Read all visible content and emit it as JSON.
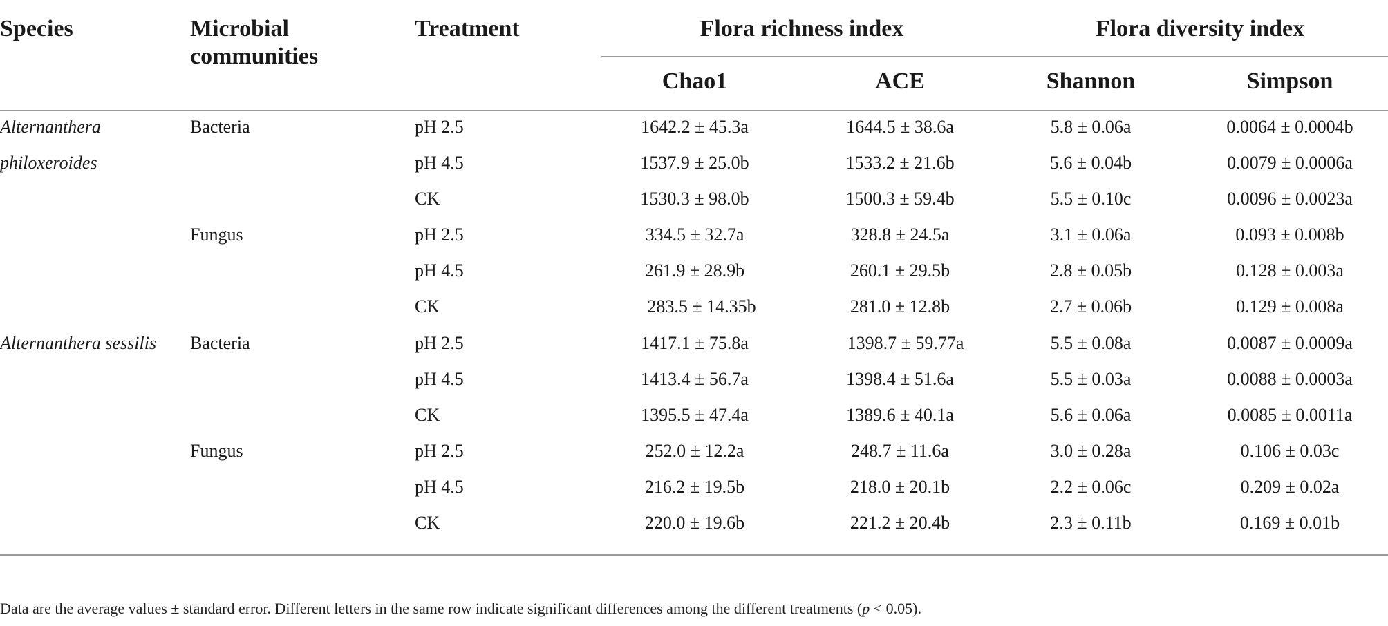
{
  "headers": {
    "species": "Species",
    "microbial_line1": "Microbial",
    "microbial_line2": "communities",
    "treatment": "Treatment",
    "richness_group": "Flora richness index",
    "diversity_group": "Flora diversity index",
    "chao1": "Chao1",
    "ace": "ACE",
    "shannon": "Shannon",
    "simpson": "Simpson"
  },
  "species_labels": {
    "s1_line1": "Alternanthera",
    "s1_line2": "philoxeroides",
    "s2": "Alternanthera sessilis"
  },
  "community_labels": {
    "s1_bacteria": "Bacteria",
    "s1_fungus": "Fungus",
    "s2_bacteria": "Bacteria",
    "s2_fungus": "Fungus"
  },
  "rows": [
    {
      "treatment": "pH 2.5",
      "chao1": "1642.2 ± 45.3a",
      "ace": "1644.5 ± 38.6a",
      "shannon": "5.8 ± 0.06a",
      "simpson": "0.0064 ± 0.0004b"
    },
    {
      "treatment": "pH 4.5",
      "chao1": "1537.9 ± 25.0b",
      "ace": "1533.2 ± 21.6b",
      "shannon": "5.6 ± 0.04b",
      "simpson": "0.0079 ± 0.0006a"
    },
    {
      "treatment": "CK",
      "chao1": "1530.3 ± 98.0b",
      "ace": "1500.3 ± 59.4b",
      "shannon": "5.5 ± 0.10c",
      "simpson": "0.0096 ± 0.0023a"
    },
    {
      "treatment": "pH 2.5",
      "chao1": "334.5 ± 32.7a",
      "ace": "328.8 ± 24.5a",
      "shannon": "3.1 ± 0.06a",
      "simpson": "0.093 ± 0.008b"
    },
    {
      "treatment": "pH 4.5",
      "chao1": "261.9 ± 28.9b",
      "ace": "260.1 ± 29.5b",
      "shannon": "2.8 ± 0.05b",
      "simpson": "0.128 ± 0.003a"
    },
    {
      "treatment": "CK",
      "chao1": "283.5 ± 14.35b",
      "ace": "281.0 ± 12.8b",
      "shannon": "2.7 ± 0.06b",
      "simpson": "0.129 ± 0.008a"
    },
    {
      "treatment": "pH 2.5",
      "chao1": "1417.1 ± 75.8a",
      "ace": "1398.7 ± 59.77a",
      "shannon": "5.5 ± 0.08a",
      "simpson": "0.0087 ± 0.0009a"
    },
    {
      "treatment": "pH 4.5",
      "chao1": "1413.4 ± 56.7a",
      "ace": "1398.4 ± 51.6a",
      "shannon": "5.5 ± 0.03a",
      "simpson": "0.0088 ± 0.0003a"
    },
    {
      "treatment": "CK",
      "chao1": "1395.5 ± 47.4a",
      "ace": "1389.6 ± 40.1a",
      "shannon": "5.6 ± 0.06a",
      "simpson": "0.0085 ± 0.0011a"
    },
    {
      "treatment": "pH 2.5",
      "chao1": "252.0 ± 12.2a",
      "ace": "248.7 ± 11.6a",
      "shannon": "3.0 ± 0.28a",
      "simpson": "0.106 ± 0.03c"
    },
    {
      "treatment": "pH 4.5",
      "chao1": "216.2 ± 19.5b",
      "ace": "218.0 ± 20.1b",
      "shannon": "2.2 ± 0.06c",
      "simpson": "0.209 ± 0.02a"
    },
    {
      "treatment": "CK",
      "chao1": "220.0 ± 19.6b",
      "ace": "221.2 ± 20.4b",
      "shannon": "2.3 ± 0.11b",
      "simpson": "0.169 ± 0.01b"
    }
  ],
  "footnote": {
    "part1": "Data are the average values ± standard error. Different letters in the same row indicate significant differences among the different treatments (",
    "p": "p",
    "part2": " < 0.05)."
  }
}
